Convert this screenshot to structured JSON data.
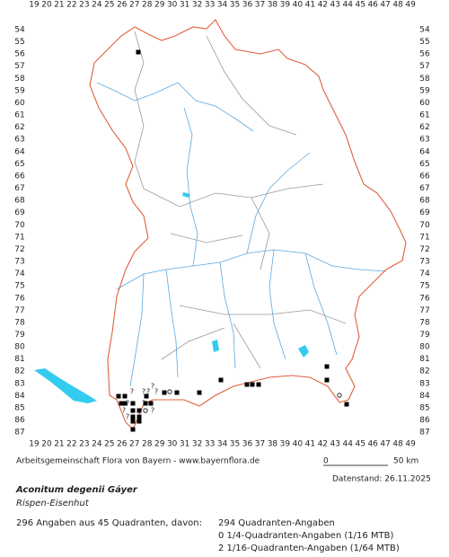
{
  "map": {
    "x_labels": [
      19,
      20,
      21,
      22,
      23,
      24,
      25,
      26,
      27,
      28,
      29,
      30,
      31,
      32,
      33,
      34,
      35,
      36,
      37,
      38,
      39,
      40,
      41,
      42,
      43,
      44,
      45,
      46,
      47,
      48,
      49
    ],
    "y_labels": [
      54,
      55,
      56,
      57,
      58,
      59,
      60,
      61,
      62,
      63,
      64,
      65,
      66,
      67,
      68,
      69,
      70,
      71,
      72,
      73,
      74,
      75,
      76,
      77,
      78,
      79,
      80,
      81,
      82,
      83,
      84,
      85,
      86,
      87
    ],
    "uncertain_marker": "?"
  },
  "footer": {
    "source": "Arbeitsgemeinschaft Flora von Bayern - www.bayernflora.de",
    "scale_start": "0",
    "scale_end": "50 km",
    "date": "Datenstand: 26.11.2025",
    "species": "Aconitum degenii Gáyer",
    "common_name": "Rispen-Eisenhut",
    "summary": "296 Angaben aus 45 Quadranten, davon:",
    "details": [
      "294 Quadranten-Angaben",
      "0 1/4-Quadranten-Angaben (1/16 MTB)",
      "2 1/16-Quadranten-Angaben (1/64 MTB)"
    ]
  }
}
